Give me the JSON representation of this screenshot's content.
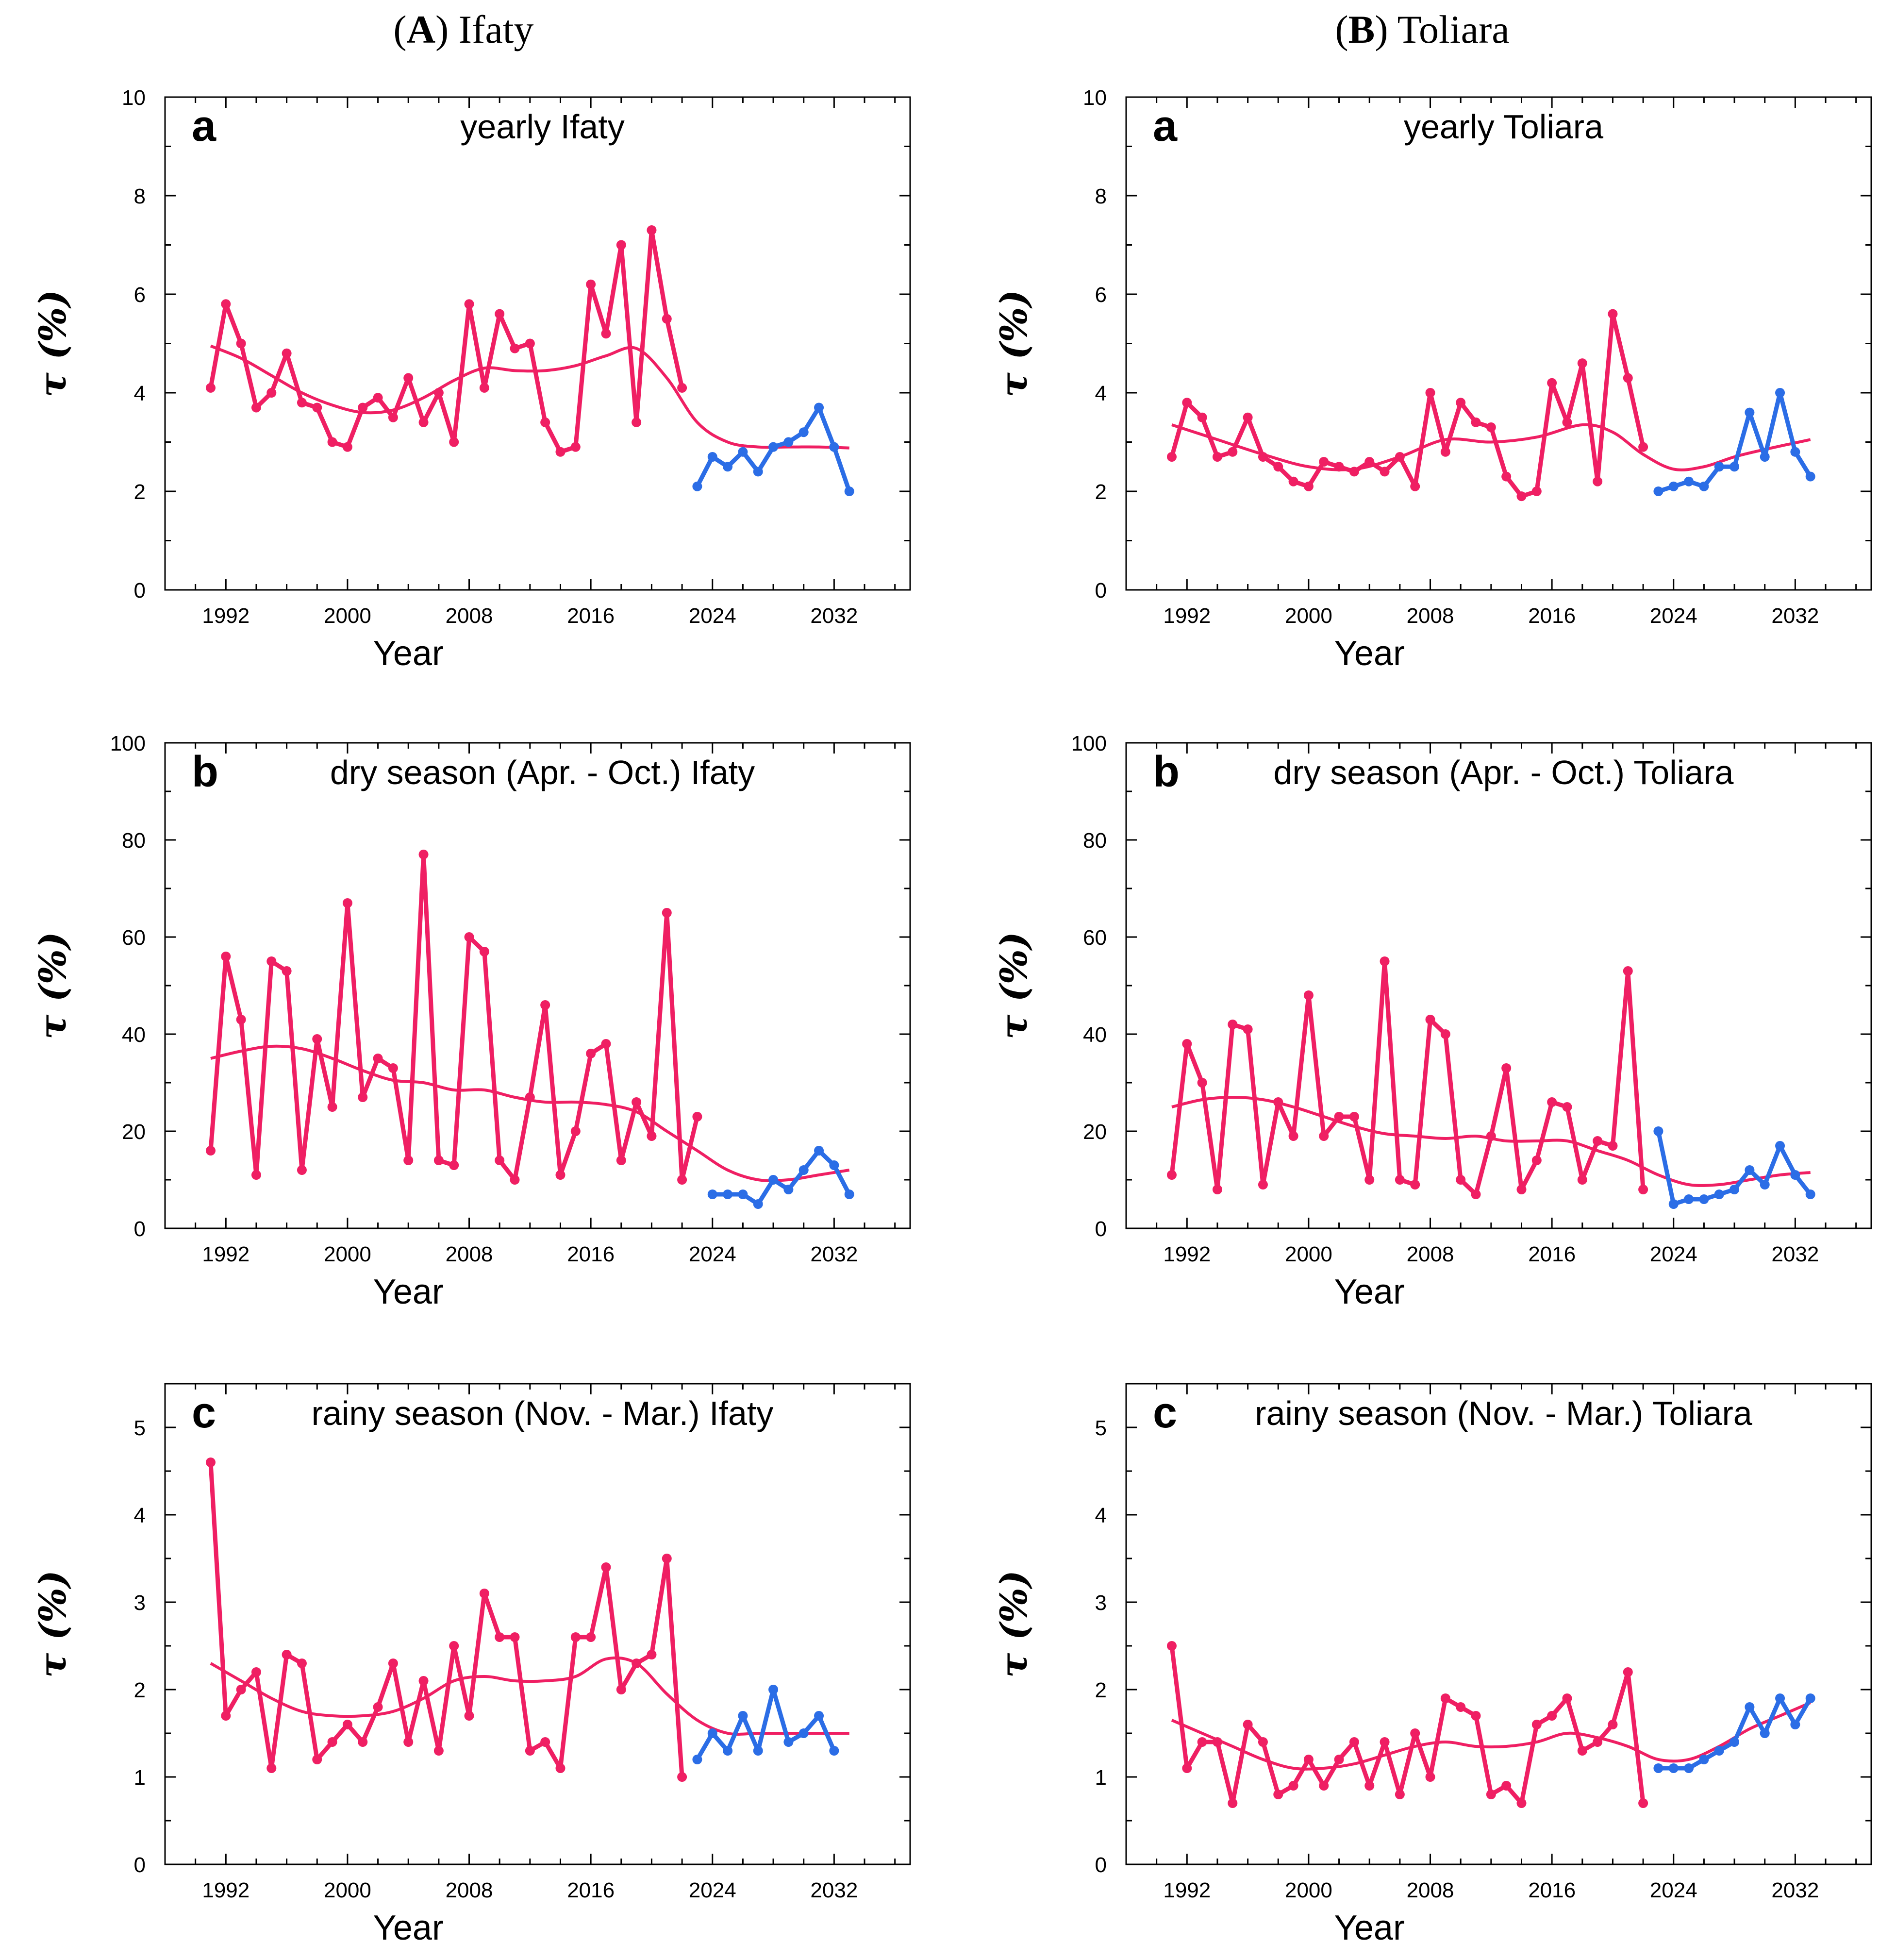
{
  "columns": [
    {
      "letter": "A",
      "title": "Ifaty"
    },
    {
      "letter": "B",
      "title": "Toliara"
    }
  ],
  "colors": {
    "observed": "#ef1f63",
    "trend": "#ef1f63",
    "forecast": "#2b6de6"
  },
  "x_axis": {
    "label": "Year",
    "ticks": [
      1992,
      2000,
      2008,
      2016,
      2024,
      2032
    ],
    "range": [
      1988,
      2037
    ]
  },
  "y_label": "τ (%)",
  "chart_data": [
    {
      "id": "A-a",
      "column": "A",
      "row": 0,
      "type": "line",
      "panel_letter": "a",
      "title": "yearly Ifaty",
      "xlabel": "Year",
      "ylabel": "τ (%)",
      "ylim": [
        0,
        10
      ],
      "yticks": [
        0,
        2,
        4,
        6,
        8,
        10
      ],
      "series": [
        {
          "name": "observed",
          "role": "observed",
          "x": [
            1991,
            1992,
            1993,
            1994,
            1995,
            1996,
            1997,
            1998,
            1999,
            2000,
            2001,
            2002,
            2003,
            2004,
            2005,
            2006,
            2007,
            2008,
            2009,
            2010,
            2011,
            2012,
            2013,
            2014,
            2015,
            2016,
            2017,
            2018,
            2019,
            2020,
            2021,
            2022
          ],
          "values": [
            4.1,
            5.8,
            5.0,
            3.7,
            4.0,
            4.8,
            3.8,
            3.7,
            3.0,
            2.9,
            3.7,
            3.9,
            3.5,
            4.3,
            3.4,
            4.0,
            3.0,
            5.8,
            4.1,
            5.6,
            4.9,
            5.0,
            3.4,
            2.8,
            2.9,
            6.2,
            5.2,
            7.0,
            3.4,
            7.3,
            5.5,
            4.1
          ]
        },
        {
          "name": "trend",
          "role": "trend",
          "x": [
            1991,
            1993,
            1995,
            1997,
            1999,
            2001,
            2003,
            2005,
            2007,
            2009,
            2011,
            2013,
            2015,
            2017,
            2019,
            2021,
            2023,
            2025,
            2027,
            2029,
            2031,
            2033
          ],
          "values": [
            4.95,
            4.7,
            4.35,
            4.0,
            3.75,
            3.6,
            3.65,
            3.9,
            4.25,
            4.5,
            4.45,
            4.45,
            4.55,
            4.75,
            4.9,
            4.3,
            3.4,
            3.0,
            2.9,
            2.9,
            2.9,
            2.88
          ]
        },
        {
          "name": "forecast",
          "role": "forecast",
          "x": [
            2023,
            2024,
            2025,
            2026,
            2027,
            2028,
            2029,
            2030,
            2031,
            2032,
            2033
          ],
          "values": [
            2.1,
            2.7,
            2.5,
            2.8,
            2.4,
            2.9,
            3.0,
            3.2,
            3.7,
            2.9,
            2.0
          ]
        }
      ]
    },
    {
      "id": "B-a",
      "column": "B",
      "row": 0,
      "type": "line",
      "panel_letter": "a",
      "title": "yearly Toliara",
      "xlabel": "Year",
      "ylabel": "τ (%)",
      "ylim": [
        0,
        10
      ],
      "yticks": [
        0,
        2,
        4,
        6,
        8,
        10
      ],
      "series": [
        {
          "name": "observed",
          "role": "observed",
          "x": [
            1991,
            1992,
            1993,
            1994,
            1995,
            1996,
            1997,
            1998,
            1999,
            2000,
            2001,
            2002,
            2003,
            2004,
            2005,
            2006,
            2007,
            2008,
            2009,
            2010,
            2011,
            2012,
            2013,
            2014,
            2015,
            2016,
            2017,
            2018,
            2019,
            2020,
            2021,
            2022
          ],
          "values": [
            2.7,
            3.8,
            3.5,
            2.7,
            2.8,
            3.5,
            2.7,
            2.5,
            2.2,
            2.1,
            2.6,
            2.5,
            2.4,
            2.6,
            2.4,
            2.7,
            2.1,
            4.0,
            2.8,
            3.8,
            3.4,
            3.3,
            2.3,
            1.9,
            2.0,
            4.2,
            3.4,
            4.6,
            2.2,
            5.6,
            4.3,
            2.9
          ]
        },
        {
          "name": "trend",
          "role": "trend",
          "x": [
            1991,
            1994,
            1997,
            2000,
            2003,
            2006,
            2009,
            2012,
            2015,
            2018,
            2020,
            2022,
            2024,
            2026,
            2028,
            2030,
            2033
          ],
          "values": [
            3.35,
            3.05,
            2.75,
            2.5,
            2.45,
            2.7,
            3.05,
            3.0,
            3.1,
            3.35,
            3.2,
            2.75,
            2.45,
            2.5,
            2.7,
            2.85,
            3.05
          ]
        },
        {
          "name": "forecast",
          "role": "forecast",
          "x": [
            2023,
            2024,
            2025,
            2026,
            2027,
            2028,
            2029,
            2030,
            2031,
            2032,
            2033
          ],
          "values": [
            2.0,
            2.1,
            2.2,
            2.1,
            2.5,
            2.5,
            3.6,
            2.7,
            4.0,
            2.8,
            2.3
          ]
        }
      ]
    },
    {
      "id": "A-b",
      "column": "A",
      "row": 1,
      "type": "line",
      "panel_letter": "b",
      "title": "dry season (Apr. - Oct.) Ifaty",
      "xlabel": "Year",
      "ylabel": "τ (%)",
      "ylim": [
        0,
        100
      ],
      "yticks": [
        0,
        20,
        40,
        60,
        80,
        100
      ],
      "series": [
        {
          "name": "observed",
          "role": "observed",
          "x": [
            1991,
            1992,
            1993,
            1994,
            1995,
            1996,
            1997,
            1998,
            1999,
            2000,
            2001,
            2002,
            2003,
            2004,
            2005,
            2006,
            2007,
            2008,
            2009,
            2010,
            2011,
            2012,
            2013,
            2014,
            2015,
            2016,
            2017,
            2018,
            2019,
            2020,
            2021,
            2022,
            2023
          ],
          "values": [
            16,
            56,
            43,
            11,
            55,
            53,
            12,
            39,
            25,
            67,
            27,
            35,
            33,
            14,
            77,
            14,
            13,
            60,
            57,
            14,
            10,
            27,
            46,
            11,
            20,
            36,
            38,
            14,
            26,
            19,
            65,
            10,
            23
          ]
        },
        {
          "name": "trend",
          "role": "trend",
          "x": [
            1991,
            1993,
            1995,
            1997,
            1999,
            2001,
            2003,
            2005,
            2007,
            2009,
            2011,
            2013,
            2015,
            2017,
            2019,
            2021,
            2023,
            2025,
            2027,
            2029,
            2031,
            2033
          ],
          "values": [
            35,
            36.5,
            37.5,
            37,
            35,
            32.5,
            30.5,
            30,
            28.5,
            28.5,
            27,
            26,
            26,
            25.5,
            24,
            20,
            16,
            12,
            10,
            10,
            11,
            12
          ]
        },
        {
          "name": "forecast",
          "role": "forecast",
          "x": [
            2024,
            2025,
            2026,
            2027,
            2028,
            2029,
            2030,
            2031,
            2032,
            2033
          ],
          "values": [
            7,
            7,
            7,
            5,
            10,
            8,
            12,
            16,
            13,
            7
          ]
        }
      ]
    },
    {
      "id": "B-b",
      "column": "B",
      "row": 1,
      "type": "line",
      "panel_letter": "b",
      "title": "dry season (Apr. - Oct.) Toliara",
      "xlabel": "Year",
      "ylabel": "τ (%)",
      "ylim": [
        0,
        100
      ],
      "yticks": [
        0,
        20,
        40,
        60,
        80,
        100
      ],
      "series": [
        {
          "name": "observed",
          "role": "observed",
          "x": [
            1991,
            1992,
            1993,
            1994,
            1995,
            1996,
            1997,
            1998,
            1999,
            2000,
            2001,
            2002,
            2003,
            2004,
            2005,
            2006,
            2007,
            2008,
            2009,
            2010,
            2011,
            2012,
            2013,
            2014,
            2015,
            2016,
            2017,
            2018,
            2019,
            2020,
            2021,
            2022
          ],
          "values": [
            11,
            38,
            30,
            8,
            42,
            41,
            9,
            26,
            19,
            48,
            19,
            23,
            23,
            10,
            55,
            10,
            9,
            43,
            40,
            10,
            7,
            19,
            33,
            8,
            14,
            26,
            25,
            10,
            18,
            17,
            53,
            8
          ]
        },
        {
          "name": "trend",
          "role": "trend",
          "x": [
            1991,
            1993,
            1995,
            1997,
            1999,
            2001,
            2003,
            2005,
            2007,
            2009,
            2011,
            2013,
            2015,
            2017,
            2019,
            2021,
            2023,
            2025,
            2027,
            2029,
            2031,
            2033
          ],
          "values": [
            25,
            26.5,
            27,
            26.5,
            25,
            23,
            21,
            19.5,
            19,
            18.5,
            19,
            18,
            18,
            18,
            16,
            14,
            11,
            9,
            9,
            10,
            11,
            11.5
          ]
        },
        {
          "name": "forecast",
          "role": "forecast",
          "x": [
            2023,
            2024,
            2025,
            2026,
            2027,
            2028,
            2029,
            2030,
            2031,
            2032,
            2033
          ],
          "values": [
            20,
            5,
            6,
            6,
            7,
            8,
            12,
            9,
            17,
            11,
            7
          ]
        }
      ]
    },
    {
      "id": "A-c",
      "column": "A",
      "row": 2,
      "type": "line",
      "panel_letter": "c",
      "title": "rainy season (Nov. - Mar.) Ifaty",
      "xlabel": "Year",
      "ylabel": "τ (%)",
      "ylim": [
        0,
        5.5
      ],
      "yticks": [
        0,
        1,
        2,
        3,
        4,
        5
      ],
      "series": [
        {
          "name": "observed",
          "role": "observed",
          "x": [
            1991,
            1992,
            1993,
            1994,
            1995,
            1996,
            1997,
            1998,
            1999,
            2000,
            2001,
            2002,
            2003,
            2004,
            2005,
            2006,
            2007,
            2008,
            2009,
            2010,
            2011,
            2012,
            2013,
            2014,
            2015,
            2016,
            2017,
            2018,
            2019,
            2020,
            2021,
            2022
          ],
          "values": [
            4.6,
            1.7,
            2.0,
            2.2,
            1.1,
            2.4,
            2.3,
            1.2,
            1.4,
            1.6,
            1.4,
            1.8,
            2.3,
            1.4,
            2.1,
            1.3,
            2.5,
            1.7,
            3.1,
            2.6,
            2.6,
            1.3,
            1.4,
            1.1,
            2.6,
            2.6,
            3.4,
            2.0,
            2.3,
            2.4,
            3.5,
            1.0
          ]
        },
        {
          "name": "trend",
          "role": "trend",
          "x": [
            1991,
            1993,
            1995,
            1997,
            1999,
            2001,
            2003,
            2005,
            2007,
            2009,
            2011,
            2013,
            2015,
            2017,
            2019,
            2021,
            2023,
            2025,
            2027,
            2029,
            2031,
            2033
          ],
          "values": [
            2.3,
            2.1,
            1.9,
            1.75,
            1.7,
            1.7,
            1.75,
            1.9,
            2.1,
            2.15,
            2.1,
            2.1,
            2.15,
            2.35,
            2.3,
            1.95,
            1.65,
            1.5,
            1.5,
            1.5,
            1.5,
            1.5
          ]
        },
        {
          "name": "forecast",
          "role": "forecast",
          "x": [
            2023,
            2024,
            2025,
            2026,
            2027,
            2028,
            2029,
            2030,
            2031,
            2032
          ],
          "values": [
            1.2,
            1.5,
            1.3,
            1.7,
            1.3,
            2.0,
            1.4,
            1.5,
            1.7,
            1.3
          ]
        }
      ]
    },
    {
      "id": "B-c",
      "column": "B",
      "row": 2,
      "type": "line",
      "panel_letter": "c",
      "title": "rainy season (Nov. - Mar.) Toliara",
      "xlabel": "Year",
      "ylabel": "τ (%)",
      "ylim": [
        0,
        5.5
      ],
      "yticks": [
        0,
        1,
        2,
        3,
        4,
        5
      ],
      "series": [
        {
          "name": "observed",
          "role": "observed",
          "x": [
            1991,
            1992,
            1993,
            1994,
            1995,
            1996,
            1997,
            1998,
            1999,
            2000,
            2001,
            2002,
            2003,
            2004,
            2005,
            2006,
            2007,
            2008,
            2009,
            2010,
            2011,
            2012,
            2013,
            2014,
            2015,
            2016,
            2017,
            2018,
            2019,
            2020,
            2021,
            2022
          ],
          "values": [
            2.5,
            1.1,
            1.4,
            1.4,
            0.7,
            1.6,
            1.4,
            0.8,
            0.9,
            1.2,
            0.9,
            1.2,
            1.4,
            0.9,
            1.4,
            0.8,
            1.5,
            1.0,
            1.9,
            1.8,
            1.7,
            0.8,
            0.9,
            0.7,
            1.6,
            1.7,
            1.9,
            1.3,
            1.4,
            1.6,
            2.2,
            0.7
          ]
        },
        {
          "name": "trend",
          "role": "trend",
          "x": [
            1991,
            1993,
            1995,
            1997,
            1999,
            2001,
            2003,
            2005,
            2007,
            2009,
            2011,
            2013,
            2015,
            2017,
            2019,
            2021,
            2023,
            2025,
            2027,
            2029,
            2031,
            2033
          ],
          "values": [
            1.65,
            1.5,
            1.35,
            1.2,
            1.1,
            1.1,
            1.15,
            1.25,
            1.35,
            1.4,
            1.35,
            1.35,
            1.4,
            1.5,
            1.45,
            1.35,
            1.2,
            1.2,
            1.35,
            1.55,
            1.7,
            1.85
          ]
        },
        {
          "name": "forecast",
          "role": "forecast",
          "x": [
            2023,
            2024,
            2025,
            2026,
            2027,
            2028,
            2029,
            2030,
            2031,
            2032,
            2033
          ],
          "values": [
            1.1,
            1.1,
            1.1,
            1.2,
            1.3,
            1.4,
            1.8,
            1.5,
            1.9,
            1.6,
            1.9
          ]
        }
      ]
    }
  ]
}
